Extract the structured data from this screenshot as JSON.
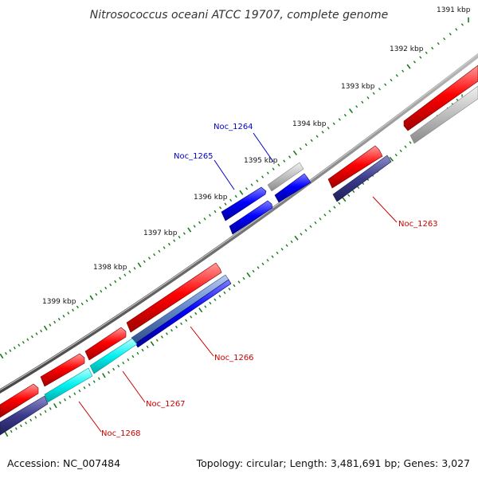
{
  "map": {
    "title": "Nitrosococcus oceani ATCC 19707, complete genome",
    "accession": "Accession: NC_007484",
    "summary": "Topology: circular; Length: 3,481,691 bp; Genes: 3,027"
  },
  "ruler": {
    "labels": [
      "1391 kbp",
      "1392 kbp",
      "1393 kbp",
      "1394 kbp",
      "1395 kbp",
      "1396 kbp",
      "1397 kbp",
      "1398 kbp",
      "1399 kbp"
    ]
  },
  "genes": [
    {
      "name": "Noc_1263",
      "color": "#cc0000"
    },
    {
      "name": "Noc_1264",
      "color": "#0000cc"
    },
    {
      "name": "Noc_1265",
      "color": "#0000cc"
    },
    {
      "name": "Noc_1266",
      "color": "#cc0000"
    },
    {
      "name": "Noc_1267",
      "color": "#cc0000"
    },
    {
      "name": "Noc_1268",
      "color": "#cc0000"
    }
  ],
  "legend_colors": {
    "cds": "#ff0000",
    "cds_reverse": "#0000ff",
    "other": "#bbbbbb",
    "rna": "#00e5e5",
    "orf": "#3b3b8c",
    "tick": "#1a7a1a",
    "backbone": "#777777"
  }
}
